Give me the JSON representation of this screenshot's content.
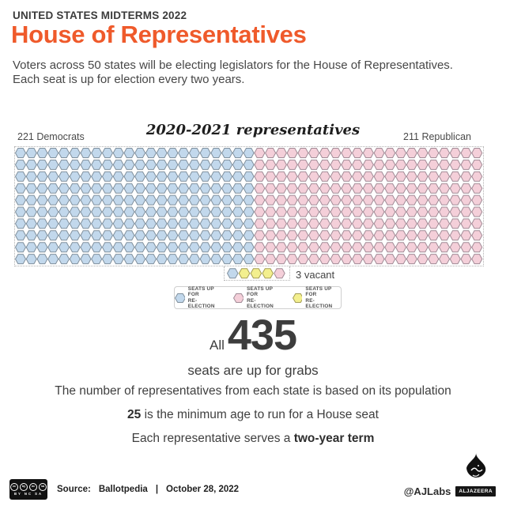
{
  "header": {
    "kicker": "UNITED STATES MIDTERMS 2022",
    "title": "House of Representatives",
    "subtitle_line1": "Voters across 50 states will be electing legislators for the House of Representatives.",
    "subtitle_line2": "Each seat is up for election every two years."
  },
  "chart": {
    "title": "2020-2021 representatives",
    "left_label": "221 Democrats",
    "right_label": "211 Republican",
    "vacant_label": "3 vacant"
  },
  "chart_data": {
    "type": "waffle-seat-grid",
    "title": "2020-2021 representatives",
    "seats_total": 435,
    "groups": [
      {
        "key": "dem",
        "name": "Democrats",
        "count": 221,
        "color": "#c2d8ec",
        "border": "#80909d"
      },
      {
        "key": "rep",
        "name": "Republican",
        "count": 211,
        "color": "#f4cfd9",
        "border": "#a18b96"
      },
      {
        "key": "vacant",
        "name": "Vacant",
        "count": 3,
        "color": "#f3ef8e",
        "border": "#a49d55"
      }
    ],
    "layout": {
      "rows": 10,
      "per_row": 43,
      "dem_per_row": 22,
      "rep_per_row": 21,
      "bottom_row": [
        "dem",
        "vacant",
        "vacant",
        "vacant",
        "rep"
      ],
      "legend_position": "bottom-center",
      "grid_border": "dotted"
    }
  },
  "legend": {
    "items": [
      {
        "line1": "SEATS UP FOR",
        "line2": "RE-ELECTION"
      },
      {
        "line1": "SEATS UP FOR",
        "line2": "RE-ELECTION"
      },
      {
        "line1": "SEATS UP FOR",
        "line2": "RE-ELECTION"
      }
    ]
  },
  "stat": {
    "prefix": "All",
    "number": "435",
    "caption": "seats are up for grabs"
  },
  "facts": [
    {
      "pre": "The number of representatives from each state is based on its population",
      "bold": "",
      "post": ""
    },
    {
      "pre": "",
      "bold": "25",
      "post": " is the minimum age to run for a House seat"
    },
    {
      "pre": "Each representative serves a ",
      "bold": "two-year term",
      "post": ""
    }
  ],
  "footer": {
    "license_icons": [
      "cc",
      "by",
      "nc",
      "sa"
    ],
    "license_label": "BY NC SA",
    "source_label": "Source:",
    "source_name": "Ballotpedia",
    "separator": "|",
    "date": "October 28, 2022",
    "credit": "@AJLabs",
    "brand": "ALJAZEERA"
  }
}
